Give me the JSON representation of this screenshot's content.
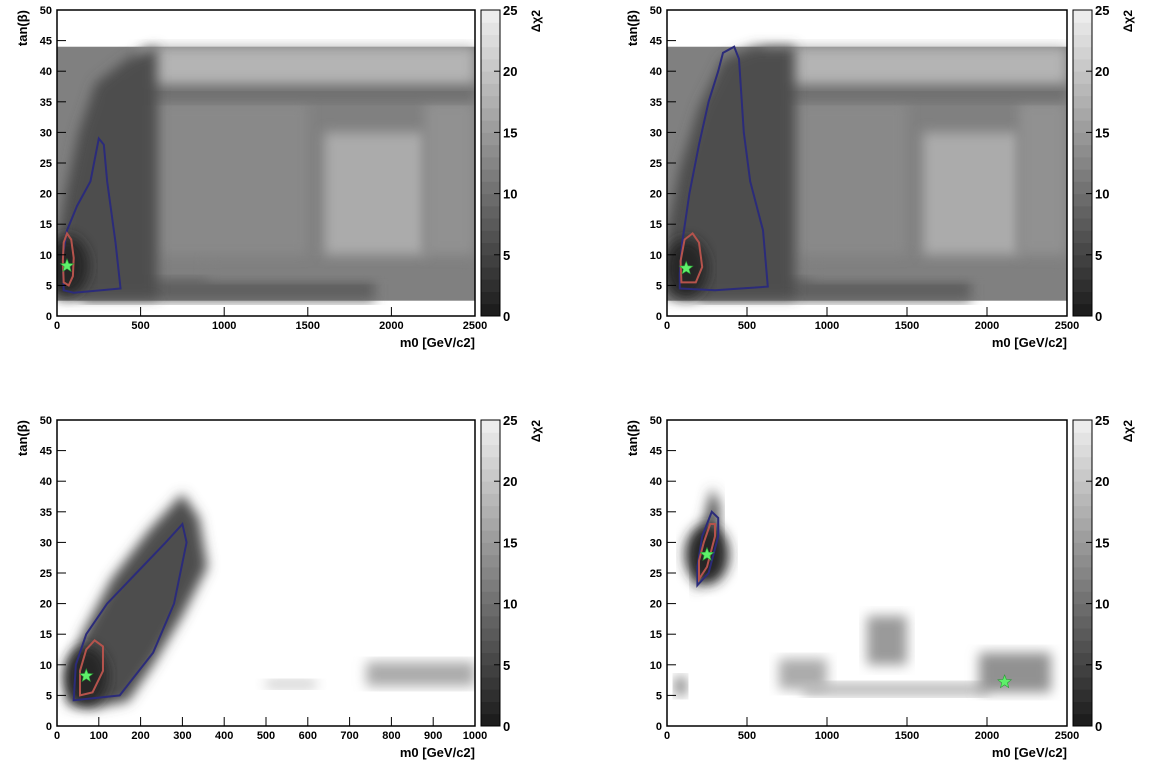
{
  "chart_data": [
    {
      "type": "heatmap",
      "xlabel": "m0 [GeV/c2]",
      "ylabel": "tan(β)",
      "zlabel": "Δχ2",
      "xlim": [
        0,
        2500
      ],
      "ylim": [
        0,
        50
      ],
      "zlim": [
        0,
        25
      ],
      "xticks": [
        0,
        500,
        1000,
        1500,
        2000,
        2500
      ],
      "yticks": [
        0,
        5,
        10,
        15,
        20,
        25,
        30,
        35,
        40,
        45,
        50
      ],
      "zticks": [
        0,
        5,
        10,
        15,
        20,
        25
      ],
      "best_fit": {
        "x": 60,
        "y": 8.2
      },
      "contour_68": [
        [
          40,
          5.5
        ],
        [
          70,
          5.0
        ],
        [
          95,
          6.5
        ],
        [
          100,
          9.5
        ],
        [
          85,
          12.5
        ],
        [
          60,
          13.5
        ],
        [
          40,
          12
        ],
        [
          35,
          9
        ]
      ],
      "contour_95": [
        [
          40,
          4.2
        ],
        [
          100,
          3.8
        ],
        [
          380,
          4.5
        ],
        [
          350,
          12
        ],
        [
          300,
          22
        ],
        [
          280,
          28
        ],
        [
          250,
          29
        ],
        [
          200,
          22
        ],
        [
          120,
          18
        ],
        [
          60,
          14
        ],
        [
          35,
          10
        ]
      ],
      "regions": [
        {
          "x0": 150,
          "x1": 1900,
          "y0": 2.5,
          "y1": 6,
          "z": 8
        },
        {
          "x0": 900,
          "x1": 2500,
          "y0": 6,
          "y1": 10,
          "z": 12
        },
        {
          "x0": 1600,
          "x1": 2200,
          "y0": 10,
          "y1": 30,
          "z": 17
        },
        {
          "x0": 600,
          "x1": 1500,
          "y0": 10,
          "y1": 35,
          "z": 13
        },
        {
          "x0": 2200,
          "x1": 2500,
          "y0": 10,
          "y1": 35,
          "z": 14
        },
        {
          "x0": 300,
          "x1": 2500,
          "y0": 35,
          "y1": 38,
          "z": 10
        },
        {
          "x0": 500,
          "x1": 2500,
          "y0": 38,
          "y1": 44,
          "z": 18
        }
      ],
      "valley": [
        [
          0,
          5
        ],
        [
          0,
          12
        ],
        [
          50,
          20
        ],
        [
          130,
          30
        ],
        [
          230,
          38
        ],
        [
          420,
          42
        ],
        [
          600,
          44
        ],
        [
          600,
          3
        ],
        [
          0,
          3
        ]
      ]
    },
    {
      "type": "heatmap",
      "xlabel": "m0 [GeV/c2]",
      "ylabel": "tan(β)",
      "zlabel": "Δχ2",
      "xlim": [
        0,
        2500
      ],
      "ylim": [
        0,
        50
      ],
      "zlim": [
        0,
        25
      ],
      "xticks": [
        0,
        500,
        1000,
        1500,
        2000,
        2500
      ],
      "yticks": [
        0,
        5,
        10,
        15,
        20,
        25,
        30,
        35,
        40,
        45,
        50
      ],
      "zticks": [
        0,
        5,
        10,
        15,
        20,
        25
      ],
      "best_fit": {
        "x": 120,
        "y": 7.8
      },
      "contour_68": [
        [
          90,
          5.5
        ],
        [
          180,
          5.5
        ],
        [
          220,
          8
        ],
        [
          200,
          12
        ],
        [
          160,
          13.5
        ],
        [
          110,
          12.5
        ],
        [
          85,
          9
        ]
      ],
      "contour_95": [
        [
          80,
          4.5
        ],
        [
          300,
          4.2
        ],
        [
          630,
          4.8
        ],
        [
          600,
          14
        ],
        [
          520,
          22
        ],
        [
          480,
          30
        ],
        [
          460,
          38
        ],
        [
          450,
          42
        ],
        [
          420,
          44
        ],
        [
          350,
          43
        ],
        [
          320,
          40
        ],
        [
          260,
          35
        ],
        [
          200,
          28
        ],
        [
          140,
          20
        ],
        [
          95,
          12
        ],
        [
          80,
          7
        ]
      ],
      "regions": [
        {
          "x0": 200,
          "x1": 1900,
          "y0": 2.5,
          "y1": 6,
          "z": 8
        },
        {
          "x0": 900,
          "x1": 2500,
          "y0": 6,
          "y1": 10,
          "z": 12
        },
        {
          "x0": 1600,
          "x1": 2200,
          "y0": 10,
          "y1": 30,
          "z": 17
        },
        {
          "x0": 800,
          "x1": 1500,
          "y0": 10,
          "y1": 35,
          "z": 13
        },
        {
          "x0": 2200,
          "x1": 2500,
          "y0": 10,
          "y1": 35,
          "z": 14
        },
        {
          "x0": 500,
          "x1": 2500,
          "y0": 35,
          "y1": 38,
          "z": 10
        },
        {
          "x0": 600,
          "x1": 2500,
          "y0": 38,
          "y1": 44,
          "z": 18
        }
      ],
      "valley": [
        [
          0,
          5
        ],
        [
          0,
          14
        ],
        [
          80,
          24
        ],
        [
          200,
          34
        ],
        [
          350,
          42
        ],
        [
          550,
          44
        ],
        [
          800,
          44
        ],
        [
          800,
          3
        ],
        [
          0,
          3
        ]
      ]
    },
    {
      "type": "heatmap",
      "xlabel": "m0 [GeV/c2]",
      "ylabel": "tan(β)",
      "zlabel": "Δχ2",
      "xlim": [
        0,
        1000
      ],
      "ylim": [
        0,
        50
      ],
      "zlim": [
        0,
        25
      ],
      "xticks": [
        0,
        100,
        200,
        300,
        400,
        500,
        600,
        700,
        800,
        900,
        1000
      ],
      "yticks": [
        0,
        5,
        10,
        15,
        20,
        25,
        30,
        35,
        40,
        45,
        50
      ],
      "zticks": [
        0,
        5,
        10,
        15,
        20,
        25
      ],
      "best_fit": {
        "x": 70,
        "y": 8.2
      },
      "contour_68": [
        [
          55,
          5
        ],
        [
          85,
          5.5
        ],
        [
          110,
          9
        ],
        [
          110,
          13
        ],
        [
          90,
          14
        ],
        [
          70,
          12.5
        ],
        [
          55,
          9
        ]
      ],
      "contour_95": [
        [
          40,
          4.2
        ],
        [
          150,
          5
        ],
        [
          230,
          12
        ],
        [
          280,
          20
        ],
        [
          310,
          30
        ],
        [
          300,
          33
        ],
        [
          260,
          30
        ],
        [
          190,
          25
        ],
        [
          120,
          20
        ],
        [
          70,
          15
        ],
        [
          45,
          10
        ]
      ],
      "regions": [
        {
          "x0": 500,
          "x1": 620,
          "y0": 6.2,
          "y1": 7.5,
          "z": 20
        },
        {
          "x0": 740,
          "x1": 1000,
          "y0": 6.5,
          "y1": 10.5,
          "z": 17
        }
      ],
      "valley": [
        [
          25,
          3.5
        ],
        [
          25,
          8
        ],
        [
          60,
          15
        ],
        [
          130,
          24
        ],
        [
          220,
          32
        ],
        [
          300,
          38
        ],
        [
          340,
          34
        ],
        [
          360,
          26
        ],
        [
          300,
          18
        ],
        [
          230,
          10
        ],
        [
          170,
          4
        ],
        [
          90,
          3
        ]
      ]
    },
    {
      "type": "heatmap",
      "xlabel": "m0 [GeV/c2]",
      "ylabel": "tan(β)",
      "zlabel": "Δχ2",
      "xlim": [
        0,
        2500
      ],
      "ylim": [
        0,
        50
      ],
      "zlim": [
        0,
        25
      ],
      "xticks": [
        0,
        500,
        1000,
        1500,
        2000,
        2500
      ],
      "yticks": [
        0,
        5,
        10,
        15,
        20,
        25,
        30,
        35,
        40,
        45,
        50
      ],
      "zticks": [
        0,
        5,
        10,
        15,
        20,
        25
      ],
      "best_fit": {
        "x": 250,
        "y": 28
      },
      "best_fit_2": {
        "x": 2110,
        "y": 7.2
      },
      "contour_68": [
        [
          200,
          24
        ],
        [
          250,
          26
        ],
        [
          300,
          31
        ],
        [
          300,
          33
        ],
        [
          270,
          33
        ],
        [
          230,
          30
        ],
        [
          200,
          27
        ]
      ],
      "contour_95": [
        [
          190,
          23
        ],
        [
          260,
          25
        ],
        [
          320,
          31
        ],
        [
          320,
          34
        ],
        [
          280,
          35
        ],
        [
          220,
          31
        ],
        [
          190,
          26
        ]
      ],
      "regions": [
        {
          "x0": 700,
          "x1": 1000,
          "y0": 6,
          "y1": 11,
          "z": 17
        },
        {
          "x0": 1250,
          "x1": 1500,
          "y0": 10,
          "y1": 18,
          "z": 15
        },
        {
          "x0": 850,
          "x1": 2000,
          "y0": 5,
          "y1": 7,
          "z": 18
        },
        {
          "x0": 1950,
          "x1": 2400,
          "y0": 5.5,
          "y1": 12,
          "z": 14
        },
        {
          "x0": 50,
          "x1": 120,
          "y0": 5,
          "y1": 8,
          "z": 12
        }
      ],
      "valley": [
        [
          180,
          22
        ],
        [
          320,
          30
        ],
        [
          330,
          36
        ],
        [
          280,
          39
        ],
        [
          200,
          30
        ],
        [
          170,
          24
        ]
      ]
    }
  ]
}
